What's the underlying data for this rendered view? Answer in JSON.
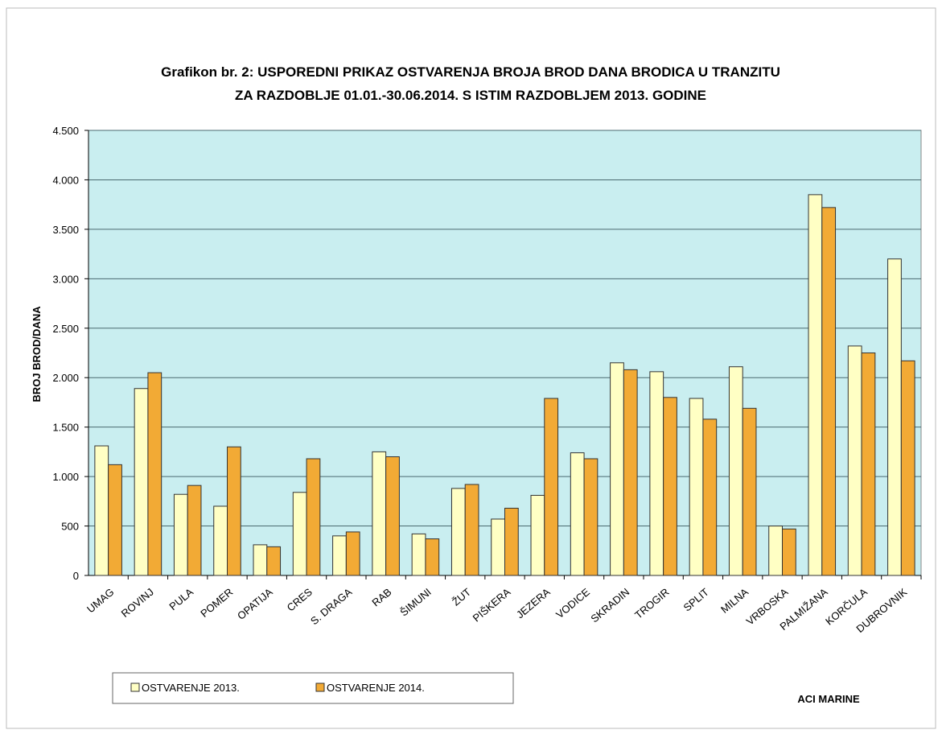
{
  "chart_data": {
    "type": "bar",
    "title": "Grafikon br. 2: USPOREDNI PRIKAZ OSTVARENJA BROJA BROD DANA BRODICA U TRANZITU",
    "subtitle": "ZA RAZDOBLJE 01.01.-30.06.2014. S ISTIM RAZDOBLJEM 2013. GODINE",
    "y_label": "BROJ BROD/DANA",
    "annotation": "ACI MARINE",
    "categories": [
      "UMAG",
      "ROVINJ",
      "PULA",
      "POMER",
      "OPATIJA",
      "CRES",
      "S. DRAGA",
      "RAB",
      "ŠIMUNI",
      "ŽUT",
      "PIŠKERA",
      "JEZERA",
      "VODICE",
      "SKRADIN",
      "TROGIR",
      "SPLIT",
      "MILNA",
      "VRBOSKA",
      "PALMIŽANA",
      "KORČULA",
      "DUBROVNIK"
    ],
    "series": [
      {
        "name": "OSTVARENJE  2013.",
        "color": "#ffffc4",
        "values": [
          1310,
          1890,
          820,
          700,
          310,
          840,
          400,
          1250,
          420,
          880,
          570,
          810,
          1240,
          2150,
          2060,
          1790,
          2110,
          500,
          3850,
          2320,
          3200
        ]
      },
      {
        "name": "OSTVARENJE 2014.",
        "color": "#f2aa35",
        "values": [
          1120,
          2050,
          910,
          1300,
          290,
          1180,
          440,
          1200,
          370,
          920,
          680,
          1790,
          1180,
          2080,
          1800,
          1580,
          1690,
          470,
          3720,
          2250,
          2170
        ]
      }
    ],
    "ylim": [
      0,
      4500
    ],
    "yticks": [
      0,
      500,
      {
        "value": 1000,
        "label": "1.000"
      },
      {
        "value": 1500,
        "label": "1.500"
      },
      {
        "value": 2000,
        "label": "2.000"
      },
      {
        "value": 2500,
        "label": "2.500"
      },
      {
        "value": 3000,
        "label": "3.000"
      },
      {
        "value": 3500,
        "label": "3.500"
      },
      {
        "value": 4000,
        "label": "4.000"
      },
      {
        "value": 4500,
        "label": "4.500"
      }
    ],
    "grid": true,
    "plot_background": "#c9eef0"
  }
}
